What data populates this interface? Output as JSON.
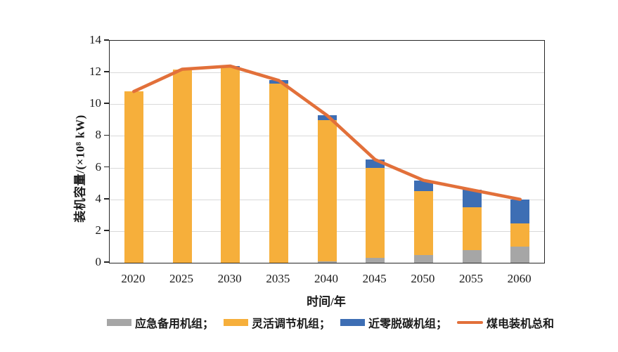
{
  "chart_data": {
    "type": "bar",
    "stacked": true,
    "title": "",
    "categories": [
      "2020",
      "2025",
      "2030",
      "2035",
      "2040",
      "2045",
      "2050",
      "2055",
      "2060"
    ],
    "series": [
      {
        "name": "应急备用机组",
        "color": "#a6a6a6",
        "values": [
          0,
          0,
          0,
          0,
          0.1,
          0.3,
          0.5,
          0.8,
          1.0
        ]
      },
      {
        "name": "灵活调节机组",
        "color": "#f6af3b",
        "values": [
          10.8,
          12.2,
          12.3,
          11.3,
          8.9,
          5.7,
          4.0,
          2.7,
          1.5
        ]
      },
      {
        "name": "近零脱碳机组",
        "color": "#3d6eb4",
        "values": [
          0,
          0,
          0.1,
          0.2,
          0.3,
          0.5,
          0.7,
          1.1,
          1.5
        ]
      }
    ],
    "line_series": {
      "name": "煤电装机总和",
      "color": "#e2703a",
      "values": [
        10.8,
        12.2,
        12.4,
        11.5,
        9.3,
        6.5,
        5.2,
        4.6,
        4.0
      ]
    },
    "xlabel": "时间/年",
    "ylabel": "装机容量/(×10⁸ kW)",
    "ylim": [
      0,
      14
    ],
    "yticks": [
      0,
      2,
      4,
      6,
      8,
      10,
      12,
      14
    ],
    "grid": true,
    "legend_position": "bottom"
  },
  "legend": {
    "items": [
      {
        "label": "应急备用机组；",
        "type": "box",
        "color": "#a6a6a6",
        "icon": "gray-box-swatch"
      },
      {
        "label": "灵活调节机组；",
        "type": "box",
        "color": "#f6af3b",
        "icon": "yellow-box-swatch"
      },
      {
        "label": "近零脱碳机组；",
        "type": "box",
        "color": "#3d6eb4",
        "icon": "blue-box-swatch"
      },
      {
        "label": "煤电装机总和",
        "type": "line",
        "color": "#e2703a",
        "icon": "orange-line-swatch"
      }
    ]
  },
  "colors": {
    "grid": "#d9d9d9",
    "axis": "#262626",
    "background": "#ffffff",
    "text": "#1a1a1a"
  }
}
